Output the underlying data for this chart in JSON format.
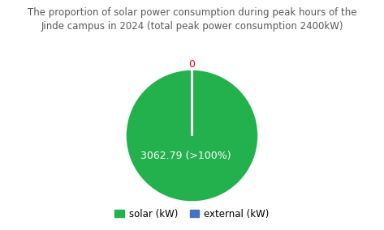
{
  "title": "The proportion of solar power consumption during peak hours of the\nJinde campus in 2024 (total peak power consumption 2400kW)",
  "solar_value": 3062.79,
  "external_value": 0.001,
  "solar_label": "3062.79 (>100%)",
  "external_label": "0",
  "solar_color": "#22b14c",
  "external_color": "#4472c4",
  "background_color": "#ffffff",
  "title_fontsize": 8.5,
  "label_fontsize": 9,
  "legend_fontsize": 8.5,
  "legend_labels": [
    "solar (kW)",
    "external (kW)"
  ]
}
